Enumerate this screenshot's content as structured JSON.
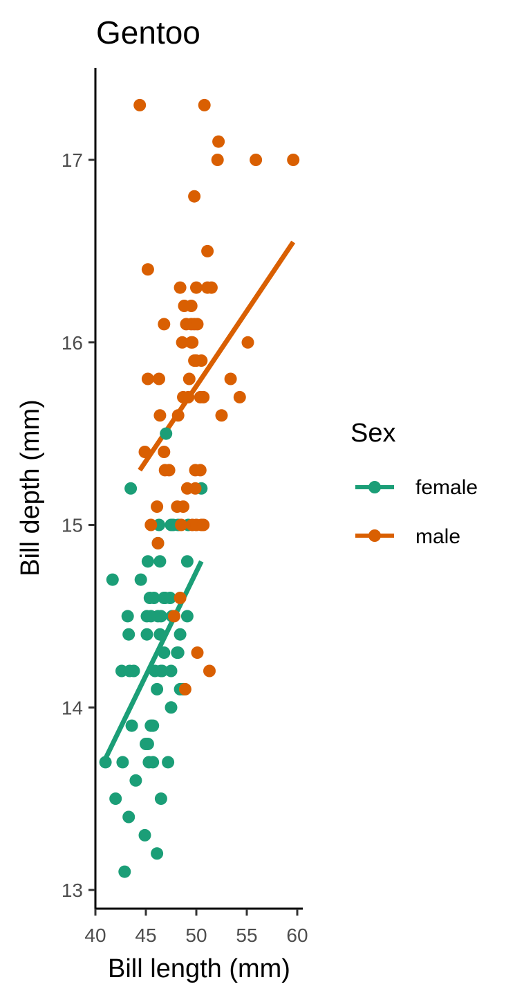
{
  "chart_data": {
    "type": "scatter",
    "title": "Gentoo",
    "xlabel": "Bill length (mm)",
    "ylabel": "Bill depth (mm)",
    "xlim": [
      40,
      60.3
    ],
    "ylim": [
      12.9,
      17.5
    ],
    "x_ticks": [
      "40",
      "45",
      "50",
      "55",
      "60"
    ],
    "y_ticks": [
      "13",
      "14",
      "15",
      "16",
      "17"
    ],
    "grid": false,
    "legend": {
      "title": "Sex",
      "placement": "right"
    },
    "series": [
      {
        "name": "female",
        "color": "#1b9e77",
        "points": [
          [
            41.0,
            13.7
          ],
          [
            41.7,
            14.7
          ],
          [
            42.0,
            13.5
          ],
          [
            42.6,
            14.2
          ],
          [
            42.7,
            13.7
          ],
          [
            42.9,
            13.1
          ],
          [
            43.2,
            14.5
          ],
          [
            43.3,
            14.4
          ],
          [
            43.3,
            13.4
          ],
          [
            43.4,
            14.2
          ],
          [
            43.5,
            15.2
          ],
          [
            43.6,
            13.9
          ],
          [
            43.8,
            14.2
          ],
          [
            44.0,
            13.6
          ],
          [
            44.5,
            14.7
          ],
          [
            44.9,
            13.3
          ],
          [
            45.0,
            13.8
          ],
          [
            45.1,
            14.5
          ],
          [
            45.1,
            14.4
          ],
          [
            45.2,
            14.8
          ],
          [
            45.2,
            13.8
          ],
          [
            45.3,
            13.7
          ],
          [
            45.4,
            14.6
          ],
          [
            45.5,
            13.9
          ],
          [
            45.5,
            14.5
          ],
          [
            45.7,
            13.9
          ],
          [
            45.7,
            13.7
          ],
          [
            45.8,
            14.6
          ],
          [
            45.9,
            14.2
          ],
          [
            46.1,
            13.2
          ],
          [
            46.1,
            14.1
          ],
          [
            46.2,
            14.5
          ],
          [
            46.2,
            14.9
          ],
          [
            46.3,
            15.0
          ],
          [
            46.4,
            14.8
          ],
          [
            46.4,
            14.4
          ],
          [
            46.5,
            13.5
          ],
          [
            46.5,
            14.5
          ],
          [
            46.5,
            14.2
          ],
          [
            46.6,
            14.2
          ],
          [
            46.8,
            14.6
          ],
          [
            46.8,
            14.3
          ],
          [
            46.9,
            14.6
          ],
          [
            47.0,
            15.5
          ],
          [
            47.2,
            13.7
          ],
          [
            47.4,
            14.6
          ],
          [
            47.5,
            15.0
          ],
          [
            47.5,
            14.0
          ],
          [
            47.5,
            14.2
          ],
          [
            47.6,
            14.5
          ],
          [
            47.7,
            15.0
          ],
          [
            48.1,
            14.3
          ],
          [
            48.2,
            14.3
          ],
          [
            48.2,
            15.0
          ],
          [
            48.4,
            14.4
          ],
          [
            48.4,
            14.1
          ],
          [
            48.7,
            14.1
          ],
          [
            49.1,
            14.5
          ],
          [
            49.1,
            14.8
          ],
          [
            49.2,
            15.0
          ],
          [
            50.5,
            15.2
          ]
        ],
        "fit": [
          [
            41.0,
            13.72
          ],
          [
            50.5,
            14.8
          ]
        ]
      },
      {
        "name": "male",
        "color": "#d95f02",
        "points": [
          [
            44.4,
            17.3
          ],
          [
            44.9,
            15.4
          ],
          [
            45.2,
            16.4
          ],
          [
            45.2,
            15.8
          ],
          [
            45.5,
            15.0
          ],
          [
            46.1,
            15.1
          ],
          [
            46.2,
            14.9
          ],
          [
            46.3,
            15.8
          ],
          [
            46.4,
            15.6
          ],
          [
            46.8,
            15.4
          ],
          [
            46.8,
            16.1
          ],
          [
            46.9,
            15.3
          ],
          [
            47.3,
            15.3
          ],
          [
            47.8,
            14.5
          ],
          [
            48.1,
            15.1
          ],
          [
            48.2,
            15.6
          ],
          [
            48.4,
            16.3
          ],
          [
            48.4,
            14.6
          ],
          [
            48.5,
            15.0
          ],
          [
            48.6,
            16.0
          ],
          [
            48.7,
            15.1
          ],
          [
            48.7,
            15.7
          ],
          [
            48.8,
            16.2
          ],
          [
            48.9,
            14.1
          ],
          [
            49.0,
            16.1
          ],
          [
            49.1,
            15.2
          ],
          [
            49.2,
            15.7
          ],
          [
            49.3,
            15.8
          ],
          [
            49.5,
            16.1
          ],
          [
            49.5,
            16.2
          ],
          [
            49.5,
            16.0
          ],
          [
            49.6,
            15.0
          ],
          [
            49.6,
            16.0
          ],
          [
            49.8,
            16.1
          ],
          [
            49.8,
            15.9
          ],
          [
            49.8,
            16.8
          ],
          [
            49.9,
            15.3
          ],
          [
            49.9,
            15.2
          ],
          [
            50.0,
            16.3
          ],
          [
            50.0,
            15.9
          ],
          [
            50.0,
            15.0
          ],
          [
            50.1,
            14.3
          ],
          [
            50.1,
            16.1
          ],
          [
            50.4,
            15.7
          ],
          [
            50.4,
            15.3
          ],
          [
            50.5,
            15.9
          ],
          [
            50.5,
            15.0
          ],
          [
            50.7,
            15.7
          ],
          [
            50.7,
            15.0
          ],
          [
            50.8,
            17.3
          ],
          [
            51.1,
            16.5
          ],
          [
            51.1,
            16.3
          ],
          [
            51.3,
            14.2
          ],
          [
            51.5,
            16.3
          ],
          [
            52.1,
            17.0
          ],
          [
            52.2,
            17.1
          ],
          [
            52.5,
            15.6
          ],
          [
            53.4,
            15.8
          ],
          [
            54.3,
            15.7
          ],
          [
            55.1,
            16.0
          ],
          [
            55.9,
            17.0
          ],
          [
            59.6,
            17.0
          ]
        ],
        "fit": [
          [
            44.4,
            15.3
          ],
          [
            59.6,
            16.55
          ]
        ]
      }
    ]
  }
}
